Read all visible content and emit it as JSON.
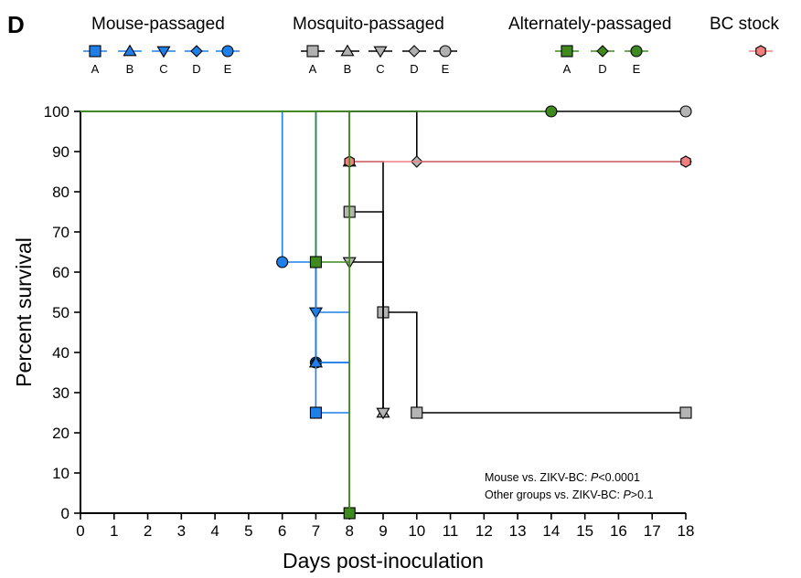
{
  "panel_label": "D",
  "annotations": [
    {
      "prefix": "Mouse vs. ZIKV-BC: ",
      "p": "P",
      "suffix": "<0.0001"
    },
    {
      "prefix": "Other groups vs. ZIKV-BC: ",
      "p": "P",
      "suffix": ">0.1"
    }
  ],
  "chart_data": {
    "type": "line",
    "subtype": "kaplan-meier-survival",
    "xlabel": "Days post-inoculation",
    "ylabel": "Percent survival",
    "xlim": [
      0,
      18
    ],
    "ylim": [
      0,
      100
    ],
    "xticks": [
      0,
      1,
      2,
      3,
      4,
      5,
      6,
      7,
      8,
      9,
      10,
      11,
      12,
      13,
      14,
      15,
      16,
      17,
      18
    ],
    "yticks": [
      0,
      10,
      20,
      30,
      40,
      50,
      60,
      70,
      80,
      90,
      100
    ],
    "grid": false,
    "legend_groups": [
      {
        "title": "Mouse-passaged",
        "color": "#1f7fe8",
        "items": [
          {
            "key": "A",
            "marker": "square"
          },
          {
            "key": "B",
            "marker": "triangle-up"
          },
          {
            "key": "C",
            "marker": "triangle-down"
          },
          {
            "key": "D",
            "marker": "diamond"
          },
          {
            "key": "E",
            "marker": "circle"
          }
        ]
      },
      {
        "title": "Mosquito-passaged",
        "color": "#b0b0b0",
        "items": [
          {
            "key": "A",
            "marker": "square"
          },
          {
            "key": "B",
            "marker": "triangle-up"
          },
          {
            "key": "C",
            "marker": "triangle-down"
          },
          {
            "key": "D",
            "marker": "diamond"
          },
          {
            "key": "E",
            "marker": "circle"
          }
        ]
      },
      {
        "title": "Alternately-passaged",
        "color": "#3f8a1e",
        "items": [
          {
            "key": "A",
            "marker": "square"
          },
          {
            "key": "D",
            "marker": "diamond"
          },
          {
            "key": "E",
            "marker": "circle"
          }
        ]
      },
      {
        "title": "BC stock",
        "color": "#f08080",
        "items": [
          {
            "key": "",
            "marker": "hexagon"
          }
        ]
      }
    ],
    "series": [
      {
        "group": "Mosquito-passaged",
        "key": "E",
        "line": "#000000",
        "fill": "#b4b4b4",
        "marker": "circle",
        "steps": [
          [
            0,
            100
          ],
          [
            18,
            100
          ]
        ],
        "markers": [
          [
            18,
            100
          ]
        ]
      },
      {
        "group": "Mosquito-passaged",
        "key": "D",
        "line": "#000000",
        "fill": "#b4b4b4",
        "marker": "diamond",
        "steps": [
          [
            0,
            100
          ],
          [
            10,
            100
          ],
          [
            10,
            87.5
          ],
          [
            18,
            87.5
          ]
        ],
        "markers": [
          [
            10,
            87.5
          ],
          [
            18,
            87.5
          ]
        ]
      },
      {
        "group": "Mosquito-passaged",
        "key": "A",
        "line": "#000000",
        "fill": "#b4b4b4",
        "marker": "square",
        "steps": [
          [
            0,
            100
          ],
          [
            8,
            100
          ],
          [
            8,
            75
          ],
          [
            9,
            75
          ],
          [
            9,
            50
          ],
          [
            10,
            50
          ],
          [
            10,
            25
          ],
          [
            18,
            25
          ]
        ],
        "markers": [
          [
            8,
            75
          ],
          [
            9,
            50
          ],
          [
            10,
            25
          ],
          [
            18,
            25
          ]
        ]
      },
      {
        "group": "Mosquito-passaged",
        "key": "B",
        "line": "#000000",
        "fill": "#b4b4b4",
        "marker": "triangle-up",
        "steps": [
          [
            0,
            100
          ],
          [
            8,
            100
          ],
          [
            8,
            87.5
          ],
          [
            9,
            87.5
          ],
          [
            9,
            25
          ]
        ],
        "markers": [
          [
            8,
            87.5
          ],
          [
            9,
            25
          ]
        ]
      },
      {
        "group": "Mosquito-passaged",
        "key": "C",
        "line": "#000000",
        "fill": "#b4b4b4",
        "marker": "triangle-down",
        "steps": [
          [
            0,
            100
          ],
          [
            8,
            100
          ],
          [
            8,
            62.5
          ],
          [
            9,
            62.5
          ],
          [
            9,
            25
          ]
        ],
        "markers": [
          [
            8,
            62.5
          ],
          [
            9,
            25
          ]
        ]
      },
      {
        "group": "Mouse-passaged",
        "key": "E",
        "line": "#1f7fe8",
        "fill": "#1f7fe8",
        "marker": "circle",
        "steps": [
          [
            0,
            100
          ],
          [
            6,
            100
          ],
          [
            6,
            62.5
          ],
          [
            7,
            62.5
          ],
          [
            7,
            37.5
          ],
          [
            8,
            37.5
          ],
          [
            8,
            0
          ]
        ],
        "markers": [
          [
            6,
            62.5
          ],
          [
            7,
            37.5
          ]
        ]
      },
      {
        "group": "Mouse-passaged",
        "key": "C",
        "line": "#1f7fe8",
        "fill": "#1f7fe8",
        "marker": "triangle-down",
        "steps": [
          [
            0,
            100
          ],
          [
            7,
            100
          ],
          [
            7,
            50
          ],
          [
            8,
            50
          ],
          [
            8,
            0
          ]
        ],
        "markers": [
          [
            7,
            50
          ]
        ]
      },
      {
        "group": "Mouse-passaged",
        "key": "D",
        "line": "#1f7fe8",
        "fill": "#1f7fe8",
        "marker": "diamond",
        "steps": [
          [
            0,
            100
          ],
          [
            7,
            100
          ],
          [
            7,
            37.5
          ],
          [
            8,
            37.5
          ],
          [
            8,
            0
          ]
        ],
        "markers": [
          [
            7,
            37.5
          ]
        ]
      },
      {
        "group": "Mouse-passaged",
        "key": "B",
        "line": "#1f7fe8",
        "fill": "#1f7fe8",
        "marker": "triangle-up",
        "steps": [
          [
            0,
            100
          ],
          [
            7,
            100
          ],
          [
            7,
            37.5
          ],
          [
            8,
            37.5
          ],
          [
            8,
            0
          ]
        ],
        "markers": [
          [
            7,
            37.5
          ]
        ]
      },
      {
        "group": "Mouse-passaged",
        "key": "A",
        "line": "#1f7fe8",
        "fill": "#1f7fe8",
        "marker": "square",
        "steps": [
          [
            0,
            100
          ],
          [
            7,
            100
          ],
          [
            7,
            25
          ],
          [
            8,
            25
          ],
          [
            8,
            0
          ]
        ],
        "markers": [
          [
            7,
            25
          ]
        ]
      },
      {
        "group": "BC stock",
        "key": "",
        "line": "#f08080",
        "fill": "#f08080",
        "marker": "hexagon",
        "steps": [
          [
            0,
            100
          ],
          [
            8,
            100
          ],
          [
            8,
            87.5
          ],
          [
            18,
            87.5
          ]
        ],
        "markers": [
          [
            8,
            87.5
          ],
          [
            18,
            87.5
          ]
        ]
      },
      {
        "group": "Alternately-passaged",
        "key": "E",
        "line": "#3f8a1e",
        "fill": "#3f8a1e",
        "marker": "circle",
        "steps": [
          [
            0,
            100
          ],
          [
            14,
            100
          ]
        ],
        "markers": [
          [
            14,
            100
          ]
        ]
      },
      {
        "group": "Alternately-passaged",
        "key": "A",
        "line": "#3f8a1e",
        "fill": "#3f8a1e",
        "marker": "square",
        "steps": [
          [
            0,
            100
          ],
          [
            7,
            100
          ],
          [
            7,
            62.5
          ],
          [
            8,
            62.5
          ],
          [
            8,
            0
          ]
        ],
        "markers": [
          [
            7,
            62.5
          ],
          [
            8,
            0
          ]
        ]
      },
      {
        "group": "Alternately-passaged",
        "key": "D",
        "line": "#3f8a1e",
        "fill": "#3f8a1e",
        "marker": "diamond",
        "steps": [
          [
            0,
            100
          ],
          [
            8,
            100
          ],
          [
            8,
            0
          ]
        ],
        "markers": []
      }
    ]
  }
}
